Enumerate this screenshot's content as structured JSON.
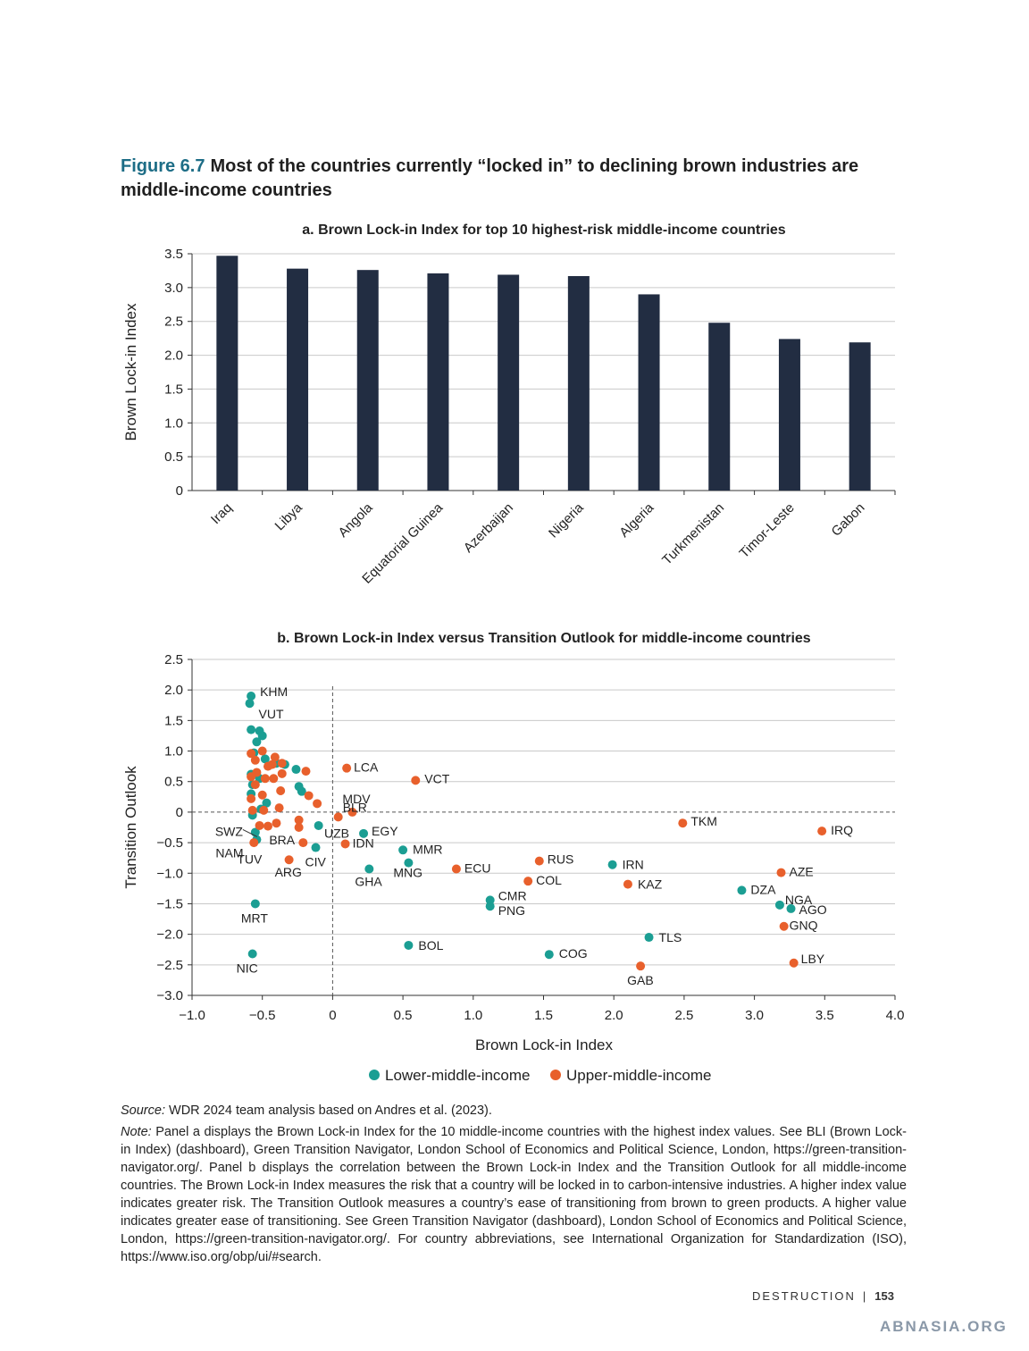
{
  "figure": {
    "number": "Figure 6.7",
    "title": "Most of the countries currently “locked in” to declining brown industries are middle-income countries"
  },
  "chart_data": [
    {
      "type": "bar",
      "title": "a. Brown Lock-in Index for top 10 highest-risk middle-income countries",
      "ylabel": "Brown Lock-in Index",
      "xlabel": "",
      "categories": [
        "Iraq",
        "Libya",
        "Angola",
        "Equatorial Guinea",
        "Azerbaijan",
        "Nigeria",
        "Algeria",
        "Turkmenistan",
        "Timor-Leste",
        "Gabon"
      ],
      "values": [
        3.47,
        3.28,
        3.26,
        3.21,
        3.19,
        3.17,
        2.9,
        2.48,
        2.24,
        2.19
      ],
      "ylim": [
        0,
        3.5
      ],
      "yticks": [
        "0",
        "0.5",
        "1.0",
        "1.5",
        "2.0",
        "2.5",
        "3.0",
        "3.5"
      ],
      "color": "#222d42",
      "grid": true
    },
    {
      "type": "scatter",
      "title": "b. Brown Lock-in Index versus Transition Outlook for middle-income countries",
      "xlabel": "Brown Lock-in Index",
      "ylabel": "Transition Outlook",
      "xlim": [
        -1.0,
        4.0
      ],
      "ylim": [
        -3.0,
        2.5
      ],
      "xticks": [
        "−1.0",
        "−0.5",
        "0",
        "0.5",
        "1.0",
        "1.5",
        "2.0",
        "2.5",
        "3.0",
        "3.5",
        "4.0"
      ],
      "yticks": [
        "−3.0",
        "−2.5",
        "−2.0",
        "−1.5",
        "−1.0",
        "−0.5",
        "0",
        "0.5",
        "1.0",
        "1.5",
        "2.0",
        "2.5"
      ],
      "grid": true,
      "reference_lines": {
        "x": 0,
        "y": 0,
        "style": "dashed"
      },
      "legend_position": "bottom",
      "series": [
        {
          "name": "Lower-middle-income",
          "color": "#1b9e93",
          "points": [
            {
              "x": -0.58,
              "y": 1.9,
              "label": "KHM"
            },
            {
              "x": -0.59,
              "y": 1.78,
              "label": "VUT"
            },
            {
              "x": -0.58,
              "y": 1.35
            },
            {
              "x": -0.52,
              "y": 1.33
            },
            {
              "x": -0.5,
              "y": 1.25
            },
            {
              "x": -0.54,
              "y": 1.15
            },
            {
              "x": -0.56,
              "y": 0.97
            },
            {
              "x": -0.48,
              "y": 0.87
            },
            {
              "x": -0.4,
              "y": 0.8
            },
            {
              "x": -0.34,
              "y": 0.78
            },
            {
              "x": -0.26,
              "y": 0.7
            },
            {
              "x": -0.58,
              "y": 0.62
            },
            {
              "x": -0.52,
              "y": 0.55
            },
            {
              "x": -0.57,
              "y": 0.45
            },
            {
              "x": -0.24,
              "y": 0.42
            },
            {
              "x": -0.22,
              "y": 0.34
            },
            {
              "x": -0.58,
              "y": 0.3
            },
            {
              "x": -0.47,
              "y": 0.15
            },
            {
              "x": -0.51,
              "y": 0.05
            },
            {
              "x": -0.57,
              "y": -0.05
            },
            {
              "x": -0.1,
              "y": -0.22
            },
            {
              "x": -0.55,
              "y": -0.33,
              "label": "SWZ"
            },
            {
              "x": -0.54,
              "y": -0.45,
              "label": "NAM"
            },
            {
              "x": -0.12,
              "y": -0.58,
              "label": "CIV"
            },
            {
              "x": 0.22,
              "y": -0.35,
              "label": "EGY"
            },
            {
              "x": 0.5,
              "y": -0.62,
              "label": "MMR"
            },
            {
              "x": 0.54,
              "y": -0.83,
              "label": "MNG"
            },
            {
              "x": 0.26,
              "y": -0.93,
              "label": "GHA"
            },
            {
              "x": 1.12,
              "y": -1.44,
              "label": "CMR"
            },
            {
              "x": 1.12,
              "y": -1.54,
              "label": "PNG"
            },
            {
              "x": -0.55,
              "y": -1.5,
              "label": "MRT"
            },
            {
              "x": 0.54,
              "y": -2.18,
              "label": "BOL"
            },
            {
              "x": -0.57,
              "y": -2.32,
              "label": "NIC"
            },
            {
              "x": 1.54,
              "y": -2.33,
              "label": "COG"
            },
            {
              "x": 1.99,
              "y": -0.86,
              "label": "IRN"
            },
            {
              "x": 2.25,
              "y": -2.05,
              "label": "TLS"
            },
            {
              "x": 2.91,
              "y": -1.28,
              "label": "DZA"
            },
            {
              "x": 3.18,
              "y": -1.52,
              "label": "NGA"
            },
            {
              "x": 3.26,
              "y": -1.58,
              "label": "AGO"
            }
          ]
        },
        {
          "name": "Upper-middle-income",
          "color": "#e8602c",
          "points": [
            {
              "x": -0.58,
              "y": 0.96
            },
            {
              "x": -0.5,
              "y": 1.0
            },
            {
              "x": -0.41,
              "y": 0.9
            },
            {
              "x": -0.55,
              "y": 0.85
            },
            {
              "x": -0.36,
              "y": 0.8
            },
            {
              "x": -0.46,
              "y": 0.75
            },
            {
              "x": -0.43,
              "y": 0.78
            },
            {
              "x": -0.19,
              "y": 0.67
            },
            {
              "x": -0.54,
              "y": 0.65
            },
            {
              "x": -0.36,
              "y": 0.63
            },
            {
              "x": -0.58,
              "y": 0.58
            },
            {
              "x": -0.48,
              "y": 0.55
            },
            {
              "x": -0.42,
              "y": 0.55
            },
            {
              "x": -0.55,
              "y": 0.45
            },
            {
              "x": -0.37,
              "y": 0.35
            },
            {
              "x": -0.5,
              "y": 0.28
            },
            {
              "x": -0.58,
              "y": 0.22
            },
            {
              "x": -0.17,
              "y": 0.27
            },
            {
              "x": -0.11,
              "y": 0.14
            },
            {
              "x": -0.38,
              "y": 0.07
            },
            {
              "x": -0.49,
              "y": 0.03
            },
            {
              "x": -0.57,
              "y": 0.03
            },
            {
              "x": -0.24,
              "y": -0.13
            },
            {
              "x": -0.4,
              "y": -0.18
            },
            {
              "x": -0.46,
              "y": -0.23
            },
            {
              "x": -0.52,
              "y": -0.22
            },
            {
              "x": -0.24,
              "y": -0.25
            },
            {
              "x": -0.56,
              "y": -0.5
            },
            {
              "x": 0.1,
              "y": 0.72,
              "label": "LCA"
            },
            {
              "x": 0.59,
              "y": 0.52,
              "label": "VCT"
            },
            {
              "x": 0.14,
              "y": 0.0,
              "label": "MDV"
            },
            {
              "x": 0.04,
              "y": -0.08,
              "label": "BLR"
            },
            {
              "x": 0.09,
              "y": -0.52,
              "label": "IDN"
            },
            {
              "x": -0.21,
              "y": -0.5,
              "label": "BRA"
            },
            {
              "x": -0.31,
              "y": -0.78,
              "label": "ARG"
            },
            {
              "x": 0.88,
              "y": -0.93,
              "label": "ECU"
            },
            {
              "x": 1.47,
              "y": -0.8,
              "label": "RUS"
            },
            {
              "x": 1.39,
              "y": -1.13,
              "label": "COL"
            },
            {
              "x": 2.1,
              "y": -1.18,
              "label": "KAZ"
            },
            {
              "x": 2.49,
              "y": -0.18,
              "label": "TKM"
            },
            {
              "x": 3.48,
              "y": -0.31,
              "label": "IRQ"
            },
            {
              "x": 3.19,
              "y": -0.99,
              "label": "AZE"
            },
            {
              "x": 3.21,
              "y": -1.87,
              "label": "GNQ"
            },
            {
              "x": 2.19,
              "y": -2.52,
              "label": "GAB"
            },
            {
              "x": 3.28,
              "y": -2.47,
              "label": "LBY"
            }
          ]
        }
      ],
      "extra_labels": [
        "UZB",
        "TUV"
      ]
    }
  ],
  "notes": {
    "source_label": "Source:",
    "source_text": " WDR 2024 team analysis based on Andres et al. (2023).",
    "note_label": "Note:",
    "note_text": " Panel a displays the Brown Lock-in Index for the 10 middle-income countries with the highest index values. See BLI (Brown Lock-in Index) (dashboard), Green Transition Navigator, London School of Economics and Political Science, London, https://green-transition-navigator.org/. Panel b displays the correlation between the Brown Lock-in Index and the Transition Outlook for all middle-income countries. The Brown Lock-in Index measures the risk that a country will be locked in to carbon-intensive industries. A higher index value indicates greater risk. The Transition Outlook measures a country’s ease of transitioning from brown to green products. A higher value indicates greater ease of transitioning. See Green Transition Navigator (dashboard), London School of Economics and Political Science, London, https://green-transition-navigator.org/. For country abbreviations, see International Organization for Standardization (ISO), https://www.iso.org/obp/ui/#search."
  },
  "footer": {
    "section": "DESTRUCTION",
    "separator": "|",
    "page": "153"
  },
  "watermark": "ABNASIA.ORG"
}
